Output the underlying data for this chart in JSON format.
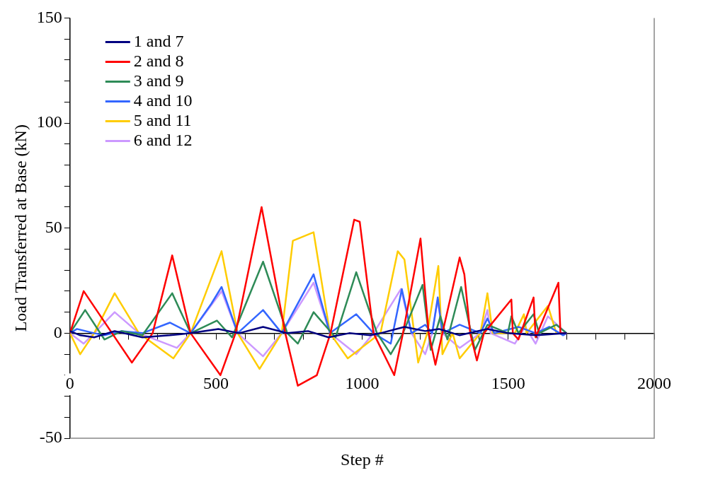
{
  "chart_data": {
    "type": "line",
    "xlabel": "Step #",
    "ylabel": "Load Transferred at Base (kN)",
    "xlim": [
      0,
      2000
    ],
    "ylim": [
      -50,
      150
    ],
    "xticks": [
      0,
      {
        "value": 100,
        "label": null
      },
      {
        "value": 200,
        "label": null
      },
      {
        "value": 300,
        "label": null
      },
      {
        "value": 400,
        "label": null
      },
      500,
      {
        "value": 600,
        "label": null
      },
      {
        "value": 700,
        "label": null
      },
      {
        "value": 800,
        "label": null
      },
      {
        "value": 900,
        "label": null
      },
      1000,
      {
        "value": 1100,
        "label": null
      },
      {
        "value": 1200,
        "label": null
      },
      {
        "value": 1300,
        "label": null
      },
      {
        "value": 1400,
        "label": null
      },
      1500,
      {
        "value": 1600,
        "label": null
      },
      {
        "value": 1700,
        "label": null
      },
      {
        "value": 1800,
        "label": null
      },
      {
        "value": 1900,
        "label": null
      },
      2000
    ],
    "yticks": [
      -50,
      {
        "value": -40,
        "label": null
      },
      {
        "value": -30,
        "label": null
      },
      {
        "value": -20,
        "label": null
      },
      {
        "value": -10,
        "label": null
      },
      0,
      {
        "value": 10,
        "label": null
      },
      {
        "value": 20,
        "label": null
      },
      {
        "value": 30,
        "label": null
      },
      {
        "value": 40,
        "label": null
      },
      50,
      {
        "value": 60,
        "label": null
      },
      {
        "value": 70,
        "label": null
      },
      {
        "value": 80,
        "label": null
      },
      {
        "value": 90,
        "label": null
      },
      100,
      {
        "value": 110,
        "label": null
      },
      {
        "value": 120,
        "label": null
      },
      {
        "value": 130,
        "label": null
      },
      {
        "value": 140,
        "label": null
      },
      150
    ],
    "grid": false,
    "legend": "top left",
    "marker": "none",
    "line_style": "solid",
    "series": [
      {
        "name": "1 and 7",
        "color": "#000080",
        "x": [
          0,
          35,
          83,
          153,
          248,
          342,
          413,
          508,
          579,
          661,
          744,
          815,
          885,
          956,
          1027,
          1063,
          1145,
          1216,
          1263,
          1334,
          1429,
          1499,
          1594,
          1700
        ],
        "values": [
          1,
          -1,
          -2,
          1,
          -2,
          -1,
          0,
          2,
          0,
          3,
          0,
          1,
          -2,
          0,
          -1,
          0,
          3,
          1,
          2,
          -1,
          2,
          0,
          -1,
          0
        ]
      },
      {
        "name": "2 and 8",
        "color": "#ff0000",
        "x": [
          0,
          47,
          212,
          283,
          350,
          413,
          515,
          567,
          656,
          737,
          780,
          845,
          892,
          973,
          992,
          1039,
          1110,
          1140,
          1200,
          1228,
          1251,
          1275,
          1334,
          1350,
          1370,
          1393,
          1417,
          1511,
          1516,
          1535,
          1587,
          1594,
          1672,
          1679,
          1700
        ],
        "values": [
          0,
          20,
          -14,
          0,
          37,
          0,
          -20,
          0,
          60,
          0,
          -25,
          -20,
          0,
          54,
          53,
          0,
          -20,
          0,
          45,
          0,
          -15,
          0,
          36,
          28,
          0,
          -13,
          0,
          16,
          0,
          -3,
          17,
          -2,
          24,
          0,
          0
        ]
      },
      {
        "name": "3 and 9",
        "color": "#2e8b57",
        "x": [
          0,
          52,
          118,
          177,
          248,
          350,
          413,
          503,
          555,
          661,
          744,
          780,
          834,
          909,
          980,
          1051,
          1098,
          1140,
          1207,
          1235,
          1268,
          1292,
          1339,
          1386,
          1429,
          1499,
          1511,
          1535,
          1587,
          1606,
          1665,
          1700
        ],
        "values": [
          0,
          11,
          -3,
          1,
          -1,
          19,
          0,
          6,
          -2,
          34,
          0,
          -5,
          10,
          -2,
          29,
          0,
          -10,
          0,
          23,
          -8,
          8,
          -3,
          22,
          -8,
          4,
          0,
          8,
          0,
          9,
          0,
          4,
          0
        ]
      },
      {
        "name": "4 and 10",
        "color": "#3366ff",
        "x": [
          0,
          24,
          83,
          118,
          177,
          248,
          342,
          413,
          484,
          519,
          574,
          661,
          725,
          834,
          890,
          980,
          1039,
          1098,
          1136,
          1169,
          1216,
          1240,
          1259,
          1275,
          1334,
          1405,
          1429,
          1452,
          1535,
          1594,
          1641,
          1688,
          1700
        ],
        "values": [
          0,
          2,
          0,
          -1,
          1,
          0,
          5,
          0,
          14,
          22,
          0,
          11,
          0,
          28,
          0,
          9,
          0,
          -5,
          21,
          0,
          4,
          0,
          17,
          0,
          4,
          0,
          7,
          0,
          3,
          0,
          3,
          -1,
          0
        ]
      },
      {
        "name": "5 and 11",
        "color": "#ffcc00",
        "x": [
          0,
          35,
          83,
          153,
          236,
          354,
          413,
          519,
          574,
          649,
          725,
          763,
          834,
          890,
          951,
          1063,
          1122,
          1145,
          1192,
          1223,
          1261,
          1275,
          1310,
          1334,
          1405,
          1429,
          1447,
          1523,
          1554,
          1563,
          1636,
          1665,
          1700
        ],
        "values": [
          0,
          -10,
          0,
          19,
          0,
          -12,
          0,
          39,
          0,
          -17,
          0,
          44,
          48,
          0,
          -12,
          0,
          39,
          35,
          -14,
          0,
          32,
          -10,
          0,
          -12,
          0,
          19,
          0,
          0,
          9,
          0,
          13,
          0,
          0
        ]
      },
      {
        "name": "6 and 12",
        "color": "#cc99ff",
        "x": [
          0,
          47,
          83,
          153,
          236,
          366,
          413,
          519,
          574,
          661,
          725,
          834,
          890,
          980,
          1039,
          1133,
          1169,
          1216,
          1240,
          1259,
          1275,
          1334,
          1405,
          1429,
          1440,
          1523,
          1558,
          1594,
          1636,
          1700
        ],
        "values": [
          0,
          -5,
          0,
          10,
          0,
          -7,
          0,
          20,
          0,
          -11,
          0,
          24,
          0,
          -10,
          0,
          21,
          0,
          -10,
          0,
          16,
          0,
          -7,
          0,
          11,
          0,
          -5,
          3,
          -5,
          8,
          0
        ]
      }
    ]
  }
}
